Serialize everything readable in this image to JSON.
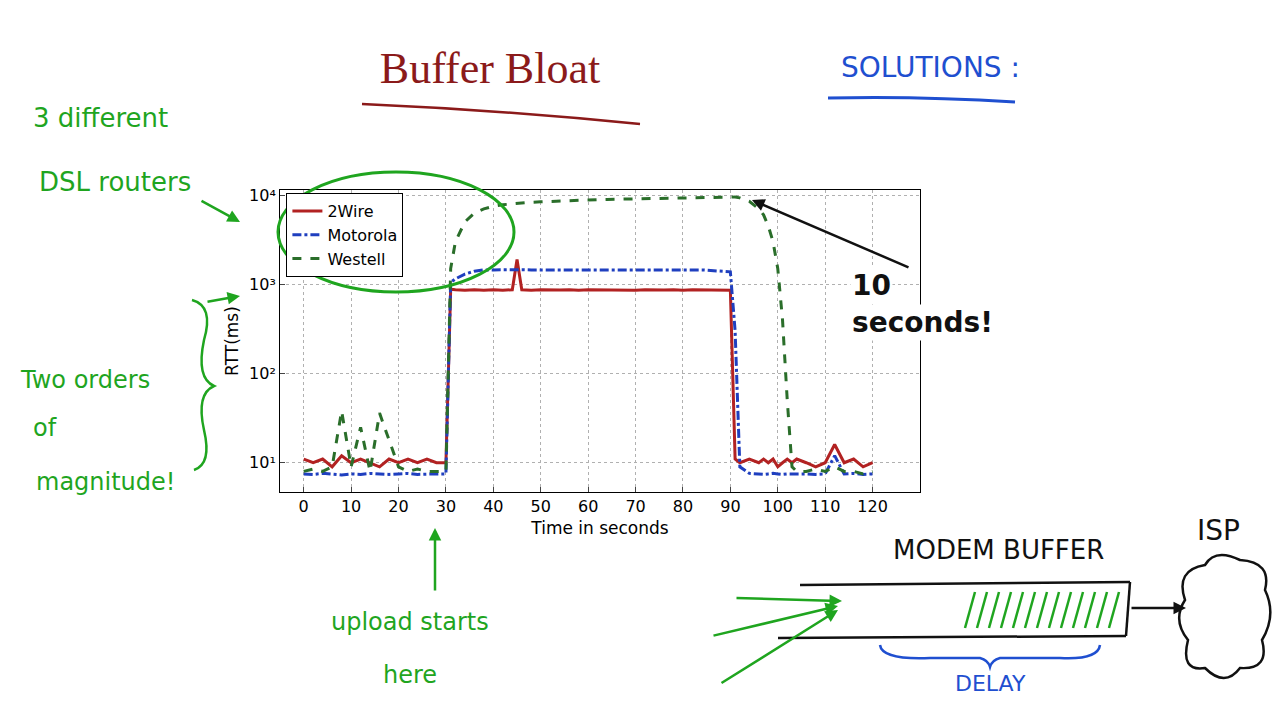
{
  "chart_data": {
    "type": "line",
    "title": "Buffer Bloat",
    "x_label": "Time in seconds",
    "y_label": "RTT(ms)",
    "x": [
      0,
      2,
      4,
      6,
      8,
      10,
      12,
      14,
      16,
      18,
      20,
      22,
      24,
      26,
      28,
      30,
      31,
      32,
      34,
      36,
      38,
      40,
      42,
      44,
      45,
      46,
      48,
      50,
      52,
      54,
      56,
      58,
      60,
      62,
      64,
      66,
      68,
      70,
      72,
      74,
      76,
      78,
      80,
      82,
      84,
      86,
      88,
      90,
      91,
      92,
      94,
      96,
      97,
      98,
      99,
      100,
      101,
      102,
      103,
      104,
      106,
      108,
      110,
      112,
      114,
      116,
      118,
      120
    ],
    "series": [
      {
        "name": "2Wire",
        "color": "#b22222",
        "line_style": "solid",
        "values": [
          11,
          10,
          11,
          9,
          12,
          10,
          11,
          10,
          9,
          11,
          10,
          11,
          10,
          11,
          10,
          10,
          880,
          870,
          860,
          870,
          860,
          870,
          860,
          870,
          1900,
          870,
          860,
          870,
          860,
          865,
          870,
          860,
          870,
          865,
          860,
          870,
          865,
          860,
          870,
          860,
          865,
          870,
          860,
          870,
          865,
          860,
          870,
          860,
          11,
          10,
          11,
          10,
          11,
          10,
          11,
          9,
          10,
          11,
          10,
          11,
          10,
          9,
          10,
          16,
          10,
          11,
          9,
          10
        ]
      },
      {
        "name": "Motorola",
        "color": "#1f3fbf",
        "line_style": "dashdot",
        "values": [
          7.5,
          7.4,
          7.6,
          7.5,
          7.3,
          7.5,
          7.4,
          7.6,
          7.5,
          7.4,
          7.5,
          7.6,
          7.4,
          7.5,
          7.5,
          7.5,
          1050,
          1150,
          1300,
          1400,
          1450,
          1450,
          1460,
          1450,
          1450,
          1460,
          1450,
          1460,
          1450,
          1450,
          1460,
          1450,
          1450,
          1460,
          1450,
          1450,
          1460,
          1450,
          1450,
          1460,
          1450,
          1450,
          1460,
          1450,
          1450,
          1420,
          1400,
          1380,
          300,
          9,
          7.6,
          7.5,
          7.4,
          7.5,
          7.6,
          7.5,
          7.4,
          7.5,
          7.5,
          7.6,
          7.5,
          7.4,
          7.5,
          12,
          7.5,
          7.6,
          7.4,
          7.5
        ]
      },
      {
        "name": "Westell",
        "color": "#2a6e2a",
        "line_style": "dash",
        "values": [
          8,
          8.5,
          8,
          9,
          38,
          9,
          25,
          8,
          36,
          18,
          9,
          8,
          8.5,
          8,
          8,
          8,
          1500,
          3000,
          5000,
          6300,
          7000,
          7500,
          7800,
          8000,
          8100,
          8200,
          8300,
          8400,
          8500,
          8600,
          8700,
          8800,
          8850,
          8900,
          8950,
          9000,
          9050,
          9100,
          9150,
          9200,
          9250,
          9300,
          9350,
          9400,
          9450,
          9500,
          9500,
          9500,
          9500,
          9300,
          8500,
          7000,
          6000,
          4500,
          3000,
          1500,
          400,
          50,
          9,
          8,
          8,
          8.5,
          8,
          9,
          8,
          8,
          7.5,
          8
        ]
      }
    ],
    "xlim": [
      -5,
      130
    ],
    "xticks": [
      0,
      10,
      20,
      30,
      40,
      50,
      60,
      70,
      80,
      90,
      100,
      110,
      120
    ],
    "ylim": [
      4.7,
      11400
    ],
    "yticks": [
      {
        "value": 10,
        "label": "10¹"
      },
      {
        "value": 100,
        "label": "10²"
      },
      {
        "value": 1000,
        "label": "10³"
      },
      {
        "value": 10000,
        "label": "10⁴"
      }
    ],
    "log": "y",
    "grid": true,
    "legend": "upper left",
    "annotations": [
      "SOLUTIONS :",
      "3 different DSL routers",
      "Two orders of magnitude!",
      "10 seconds!",
      "upload starts here",
      "MODEM BUFFER",
      "ISP",
      "DELAY"
    ]
  }
}
